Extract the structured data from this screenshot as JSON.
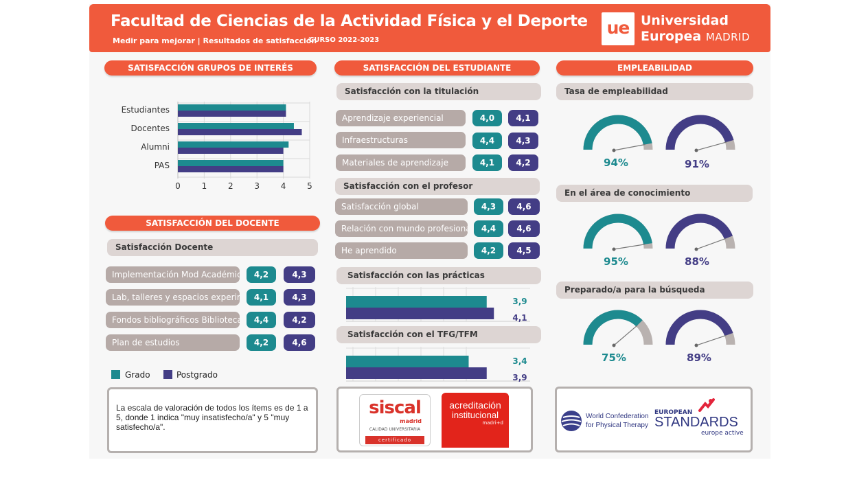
{
  "header": {
    "title": "Facultad de Ciencias de la Actividad Física y el Deporte",
    "subtitle": "Medir para mejorar | Resultados de satisfacción",
    "curso": "CURSO 2022-2023",
    "logo_text": "ue",
    "university_line1": "Universidad",
    "university_line2": "Europea",
    "university_city": "MADRID"
  },
  "colors": {
    "grado": "#1d8a8f",
    "postgrado": "#433d85",
    "accent": "#f05a3c"
  },
  "grupos": {
    "title": "SATISFACCIÓN GRUPOS DE INTERÉS",
    "chart_data": {
      "type": "bar",
      "orientation": "horizontal",
      "categories": [
        "Estudiantes",
        "Docentes",
        "Alumni",
        "PAS"
      ],
      "series": [
        {
          "name": "Grado",
          "values": [
            4.1,
            4.4,
            4.2,
            4.0
          ]
        },
        {
          "name": "Postgrado",
          "values": [
            4.1,
            4.7,
            4.0,
            4.0
          ]
        }
      ],
      "xlim": [
        0,
        5
      ],
      "ticks": [
        "0",
        "1",
        "2",
        "3",
        "4",
        "5"
      ],
      "grid": true
    }
  },
  "docente": {
    "title": "SATISFACCIÓN DEL DOCENTE",
    "subhead": "Satisfacción Docente",
    "rows": [
      {
        "label": "Implementación Mod Académico",
        "grado": "4,2",
        "postgrado": "4,3"
      },
      {
        "label": "Lab, talleres y espacios experim",
        "grado": "4,1",
        "postgrado": "4,3"
      },
      {
        "label": "Fondos bibliográficos Biblioteca",
        "grado": "4,4",
        "postgrado": "4,2"
      },
      {
        "label": "Plan de estudios",
        "grado": "4,2",
        "postgrado": "4,6"
      }
    ]
  },
  "legend": {
    "grado": "Grado",
    "postgrado": "Postgrado"
  },
  "note": "La escala de valoración de todos los ítems es de 1 a 5, donde 1 indica \"muy insatisfecho/a\" y 5 \"muy satisfecho/a\".",
  "estudiante": {
    "title": "SATISFACCIÓN DEL ESTUDIANTE",
    "titulacion": {
      "subhead": "Satisfacción con la titulación",
      "rows": [
        {
          "label": "Aprendizaje experiencial",
          "grado": "4,0",
          "postgrado": "4,1"
        },
        {
          "label": "Infraestructuras",
          "grado": "4,4",
          "postgrado": "4,3"
        },
        {
          "label": "Materiales de aprendizaje",
          "grado": "4,1",
          "postgrado": "4,2"
        }
      ]
    },
    "profesor": {
      "subhead": "Satisfacción con el profesor",
      "rows": [
        {
          "label": "Satisfacción global",
          "grado": "4,3",
          "postgrado": "4,6"
        },
        {
          "label": "Relación con mundo profesional",
          "grado": "4,4",
          "postgrado": "4,6"
        },
        {
          "label": "He aprendido",
          "grado": "4,2",
          "postgrado": "4,5"
        }
      ]
    },
    "practicas": {
      "subhead": "Satisfacción con las prácticas",
      "chart_data": {
        "type": "bar",
        "orientation": "horizontal",
        "categories": [
          "Grado",
          "Postgrado"
        ],
        "values": [
          3.9,
          4.1
        ],
        "labels": [
          "3,9",
          "4,1"
        ]
      }
    },
    "tfg": {
      "subhead": "Satisfacción con el TFG/TFM",
      "chart_data": {
        "type": "bar",
        "orientation": "horizontal",
        "categories": [
          "Grado",
          "Postgrado"
        ],
        "values": [
          3.4,
          3.9
        ],
        "labels": [
          "3,4",
          "3,9"
        ]
      }
    }
  },
  "cert_logos": {
    "siscal_main": "siscal",
    "siscal_sub": "madrid",
    "siscal_caption": "CALIDAD UNIVERSITARIA",
    "siscal_badge": "certificado",
    "acred_line1": "acreditación",
    "acred_line2": "institucional",
    "acred_line3": "madri+d"
  },
  "empleabilidad": {
    "title": "EMPLEABILIDAD",
    "sections": [
      {
        "subhead": "Tasa de empleabilidad",
        "grado": 94,
        "postgrado": 91,
        "grado_label": "94%",
        "postgrado_label": "91%"
      },
      {
        "subhead": "En el área de conocimiento",
        "grado": 95,
        "postgrado": 88,
        "grado_label": "95%",
        "postgrado_label": "88%"
      },
      {
        "subhead": "Preparado/a para la búsqueda",
        "grado": 75,
        "postgrado": 89,
        "grado_label": "75%",
        "postgrado_label": "89%"
      }
    ]
  },
  "partner_logos": {
    "wcpt_line1": "World Confederation",
    "wcpt_line2": "for Physical Therapy",
    "eu_line1": "EUROPEAN",
    "eu_line2": "STANDARDS",
    "eu_line3": "europe active"
  }
}
